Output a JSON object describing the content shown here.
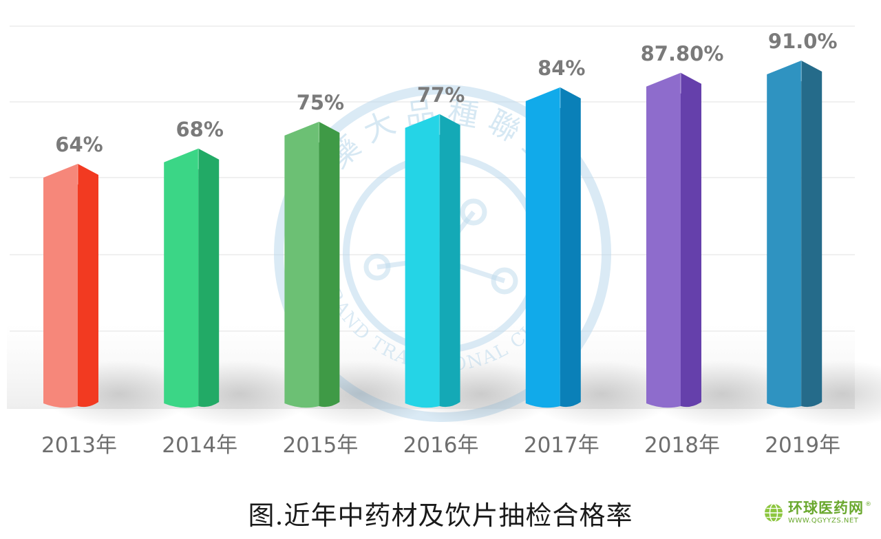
{
  "chart_data": {
    "type": "bar",
    "categories": [
      "2013年",
      "2014年",
      "2015年",
      "2016年",
      "2017年",
      "2018年",
      "2019年"
    ],
    "values": [
      64,
      68,
      75,
      77,
      84,
      87.8,
      91.0
    ],
    "data_labels": [
      "64%",
      "68%",
      "75%",
      "77%",
      "84%",
      "87.80%",
      "91.0%"
    ],
    "title": "图.近年中药材及饮片抽检合格率",
    "xlabel": "",
    "ylabel": "",
    "grid": true,
    "legend": "none",
    "bar_colors": [
      {
        "front": "#f6877a",
        "side": "#f23a21",
        "top": "#f9b0a6"
      },
      {
        "front": "#3bd686",
        "side": "#22aa66",
        "top": "#8ce8b6"
      },
      {
        "front": "#6cc074",
        "side": "#3f9a46",
        "top": "#a5dca9"
      },
      {
        "front": "#25d4e6",
        "side": "#14a9b6",
        "top": "#8eeaf2"
      },
      {
        "front": "#11aaea",
        "side": "#0a80b8",
        "top": "#7fd0f4"
      },
      {
        "front": "#8e6ccc",
        "side": "#6540ab",
        "top": "#c2aee4"
      },
      {
        "front": "#2f93c1",
        "side": "#256b8a",
        "top": "#8cc3dc"
      }
    ]
  },
  "watermark": {
    "text_cn": "中藥大品種聯盟",
    "text_en": "BIG BRAND TRADITIONAL CHINESE MEDICINE",
    "color": "#bcd9ec"
  },
  "brand": {
    "name": "环球医药网",
    "url": "WWW.QGYYZS.NET",
    "reg": "®",
    "color": "#6aa82e"
  }
}
